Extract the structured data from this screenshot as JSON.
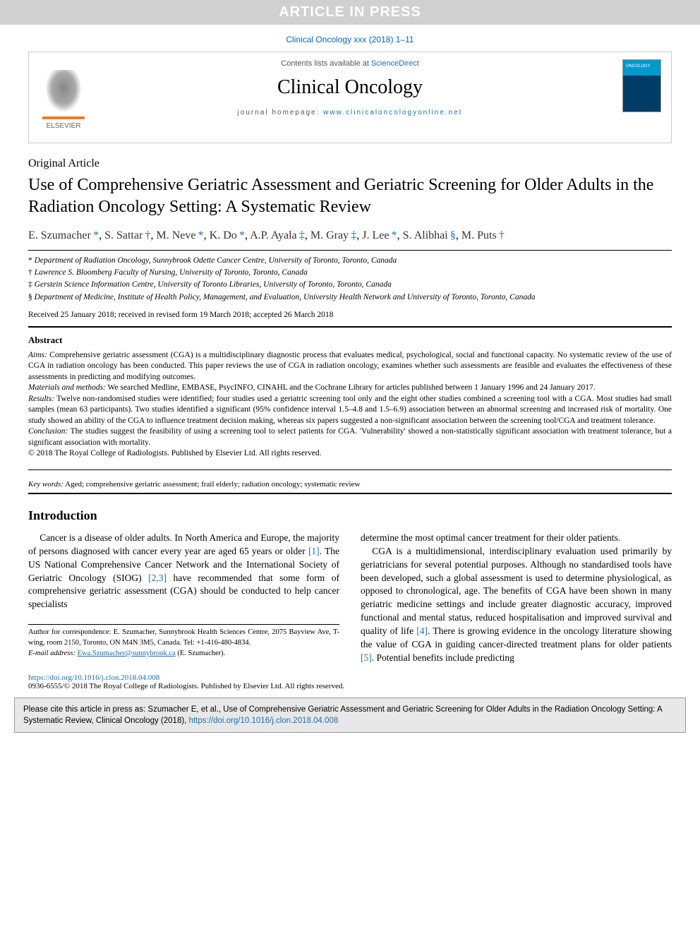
{
  "banner": "ARTICLE IN PRESS",
  "citation_top": "Clinical Oncology xxx (2018) 1–11",
  "header": {
    "publisher_logo_text": "ELSEVIER",
    "contents_prefix": "Contents lists available at ",
    "contents_link": "ScienceDirect",
    "journal_name": "Clinical Oncology",
    "homepage_prefix": "journal homepage: ",
    "homepage_url": "www.clinicaloncologyonline.net"
  },
  "article": {
    "type": "Original Article",
    "title": "Use of Comprehensive Geriatric Assessment and Geriatric Screening for Older Adults in the Radiation Oncology Setting: A Systematic Review",
    "authors": [
      {
        "name": "E. Szumacher",
        "marker": "*"
      },
      {
        "name": "S. Sattar",
        "marker": "†"
      },
      {
        "name": "M. Neve",
        "marker": "*"
      },
      {
        "name": "K. Do",
        "marker": "*"
      },
      {
        "name": "A.P. Ayala",
        "marker": "‡"
      },
      {
        "name": "M. Gray",
        "marker": "‡"
      },
      {
        "name": "J. Lee",
        "marker": "*"
      },
      {
        "name": "S. Alibhai",
        "marker": "§"
      },
      {
        "name": "M. Puts",
        "marker": "†"
      }
    ],
    "affiliations": [
      {
        "marker": "*",
        "text": "Department of Radiation Oncology, Sunnybrook Odette Cancer Centre, University of Toronto, Toronto, Canada"
      },
      {
        "marker": "†",
        "text": "Lawrence S. Bloomberg Faculty of Nursing, University of Toronto, Toronto, Canada"
      },
      {
        "marker": "‡",
        "text": "Gerstein Science Information Centre, University of Toronto Libraries, University of Toronto, Toronto, Canada"
      },
      {
        "marker": "§",
        "text": "Department of Medicine, Institute of Health Policy, Management, and Evaluation, University Health Network and University of Toronto, Toronto, Canada"
      }
    ],
    "dates": "Received 25 January 2018; received in revised form 19 March 2018; accepted 26 March 2018"
  },
  "abstract": {
    "heading": "Abstract",
    "aims_label": "Aims:",
    "aims": " Comprehensive geriatric assessment (CGA) is a multidisciplinary diagnostic process that evaluates medical, psychological, social and functional capacity. No systematic review of the use of CGA in radiation oncology has been conducted. This paper reviews the use of CGA in radiation oncology, examines whether such assessments are feasible and evaluates the effectiveness of these assessments in predicting and modifying outcomes.",
    "methods_label": "Materials and methods:",
    "methods": " We searched Medline, EMBASE, PsycINFO, CINAHL and the Cochrane Library for articles published between 1 January 1996 and 24 January 2017.",
    "results_label": "Results:",
    "results": " Twelve non-randomised studies were identified; four studies used a geriatric screening tool only and the eight other studies combined a screening tool with a CGA. Most studies had small samples (mean 63 participants). Two studies identified a significant (95% confidence interval 1.5–4.8 and 1.5–6.9) association between an abnormal screening and increased risk of mortality. One study showed an ability of the CGA to influence treatment decision making, whereas six papers suggested a non-significant association between the screening tool/CGA and treatment tolerance.",
    "conclusion_label": "Conclusion:",
    "conclusion": " The studies suggest the feasibility of using a screening tool to select patients for CGA. 'Vulnerability' showed a non-statistically significant association with treatment tolerance, but a significant association with mortality.",
    "copyright": "© 2018 The Royal College of Radiologists. Published by Elsevier Ltd. All rights reserved."
  },
  "keywords": {
    "label": "Key words:",
    "text": " Aged; comprehensive geriatric assessment; frail elderly; radiation oncology; systematic review"
  },
  "intro": {
    "heading": "Introduction",
    "col1_p1a": "Cancer is a disease of older adults. In North America and Europe, the majority of persons diagnosed with cancer every year are aged 65 years or older ",
    "ref1": "[1]",
    "col1_p1b": ". The US National Comprehensive Cancer Network and the International Society of Geriatric Oncology (SIOG) ",
    "ref23": "[2,3]",
    "col1_p1c": " have recommended that some form of comprehensive geriatric assessment (CGA) should be conducted to help cancer specialists",
    "col2_p1": "determine the most optimal cancer treatment for their older patients.",
    "col2_p2a": "CGA is a multidimensional, interdisciplinary evaluation used primarily by geriatricians for several potential purposes. Although no standardised tools have been developed, such a global assessment is used to determine physiological, as opposed to chronological, age. The benefits of CGA have been shown in many geriatric medicine settings and include greater diagnostic accuracy, improved functional and mental status, reduced hospitalisation and improved survival and quality of life ",
    "ref4": "[4]",
    "col2_p2b": ". There is growing evidence in the oncology literature showing the value of CGA in guiding cancer-directed treatment plans for older patients ",
    "ref5": "[5]",
    "col2_p2c": ". Potential benefits include predicting"
  },
  "footnote": {
    "correspondence": "Author for correspondence: E. Szumacher, Sunnybrook Health Sciences Centre, 2075 Bayview Ave, T-wing, room 2150, Toronto, ON M4N 3M5, Canada. Tel: +1-416-480-4834.",
    "email_label": "E-mail address:",
    "email": "Ewa.Szumacher@sunnybrook.ca",
    "email_suffix": " (E. Szumacher)."
  },
  "doi": {
    "url": "https://doi.org/10.1016/j.clon.2018.04.008",
    "issn_line": "0936-6555/© 2018 The Royal College of Radiologists. Published by Elsevier Ltd. All rights reserved."
  },
  "cite_box": {
    "text_a": "Please cite this article in press as: Szumacher E, et al., Use of Comprehensive Geriatric Assessment and Geriatric Screening for Older Adults in the Radiation Oncology Setting: A Systematic Review, Clinical Oncology (2018), ",
    "link": "https://doi.org/10.1016/j.clon.2018.04.008"
  },
  "colors": {
    "link": "#1a6eb8",
    "banner_bg": "#d0d0d0",
    "citebox_bg": "#e8e8e8"
  }
}
